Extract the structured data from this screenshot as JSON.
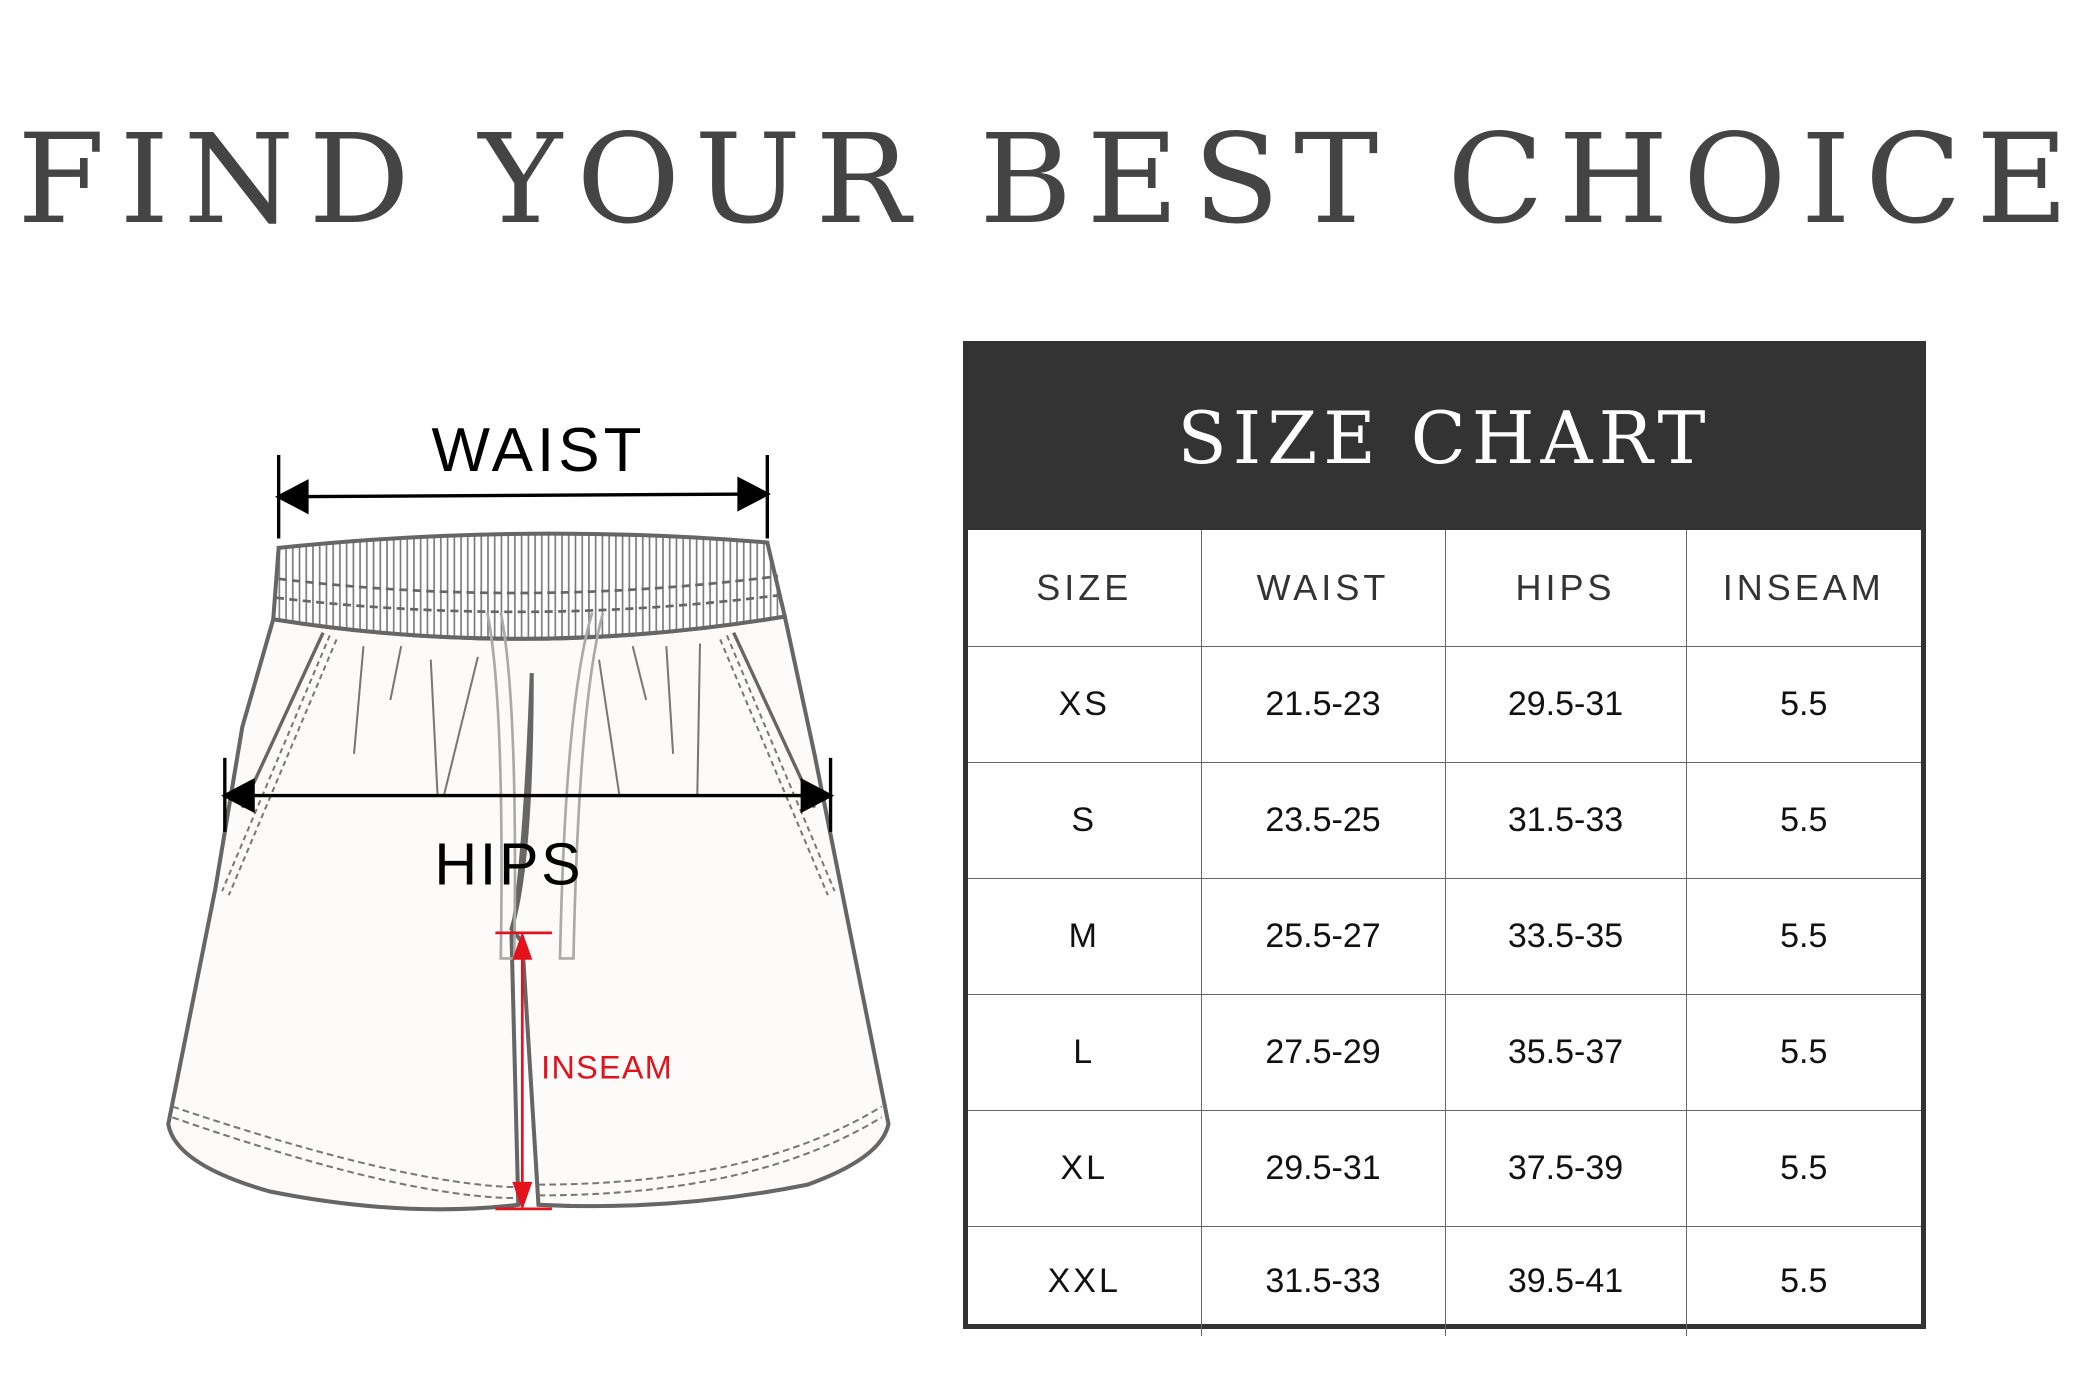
{
  "title": "FIND YOUR BEST CHOICE",
  "diagram": {
    "waist_label": "WAIST",
    "hips_label": "HIPS",
    "inseam_label": "INSEAM",
    "inseam_color": "#e3121b"
  },
  "size_chart": {
    "title": "SIZE CHART",
    "header_color": "#333333",
    "columns": [
      "SIZE",
      "WAIST",
      "HIPS",
      "INSEAM"
    ],
    "rows": [
      [
        "XS",
        "21.5-23",
        "29.5-31",
        "5.5"
      ],
      [
        "S",
        "23.5-25",
        "31.5-33",
        "5.5"
      ],
      [
        "M",
        "25.5-27",
        "33.5-35",
        "5.5"
      ],
      [
        "L",
        "27.5-29",
        "35.5-37",
        "5.5"
      ],
      [
        "XL",
        "29.5-31",
        "37.5-39",
        "5.5"
      ],
      [
        "XXL",
        "31.5-33",
        "39.5-41",
        "5.5"
      ]
    ]
  }
}
